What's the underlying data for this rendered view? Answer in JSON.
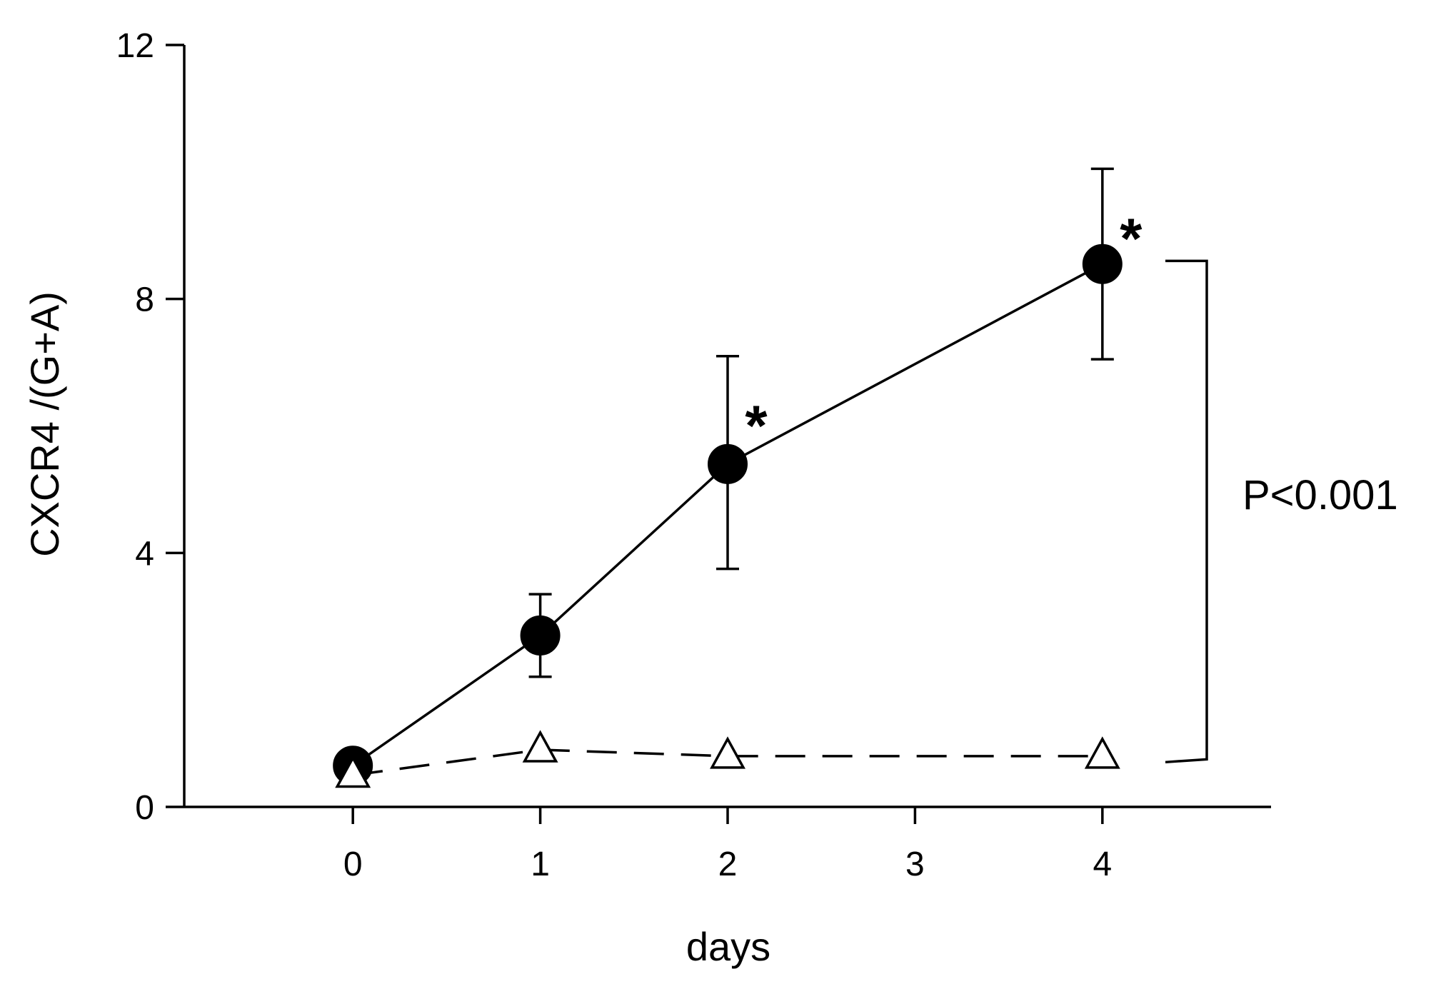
{
  "chart_data": {
    "type": "line",
    "title": "",
    "xlabel": "days",
    "ylabel": "CXCR4 /(G+A)",
    "xlim": [
      -0.9,
      4.9
    ],
    "ylim": [
      0,
      12
    ],
    "xticks": [
      0,
      1,
      2,
      3,
      4
    ],
    "xtick_labels": [
      "0",
      "1",
      "2",
      "3",
      "4"
    ],
    "yticks": [
      0,
      4,
      8,
      12
    ],
    "ytick_labels": [
      "0",
      "4",
      "8",
      "12"
    ],
    "grid": false,
    "legend": "none",
    "series": [
      {
        "marker": "filled-circle",
        "line_style": "solid",
        "color": "#000000",
        "x": [
          0,
          1,
          2,
          4
        ],
        "y": [
          0.65,
          2.7,
          5.4,
          8.55
        ],
        "error_low": [
          null,
          2.05,
          3.75,
          7.05
        ],
        "error_high": [
          null,
          3.35,
          7.1,
          10.05
        ],
        "significance": [
          "",
          "",
          "*",
          "*"
        ]
      },
      {
        "marker": "open-triangle",
        "line_style": "dashed",
        "color": "#000000",
        "x": [
          0,
          1,
          2,
          4
        ],
        "y": [
          0.5,
          0.9,
          0.8,
          0.8
        ]
      }
    ],
    "annotations": {
      "comparison_bracket": {
        "y_top": 8.6,
        "y_bottom": 0.75
      },
      "p_value_text": "P<0.001"
    }
  }
}
